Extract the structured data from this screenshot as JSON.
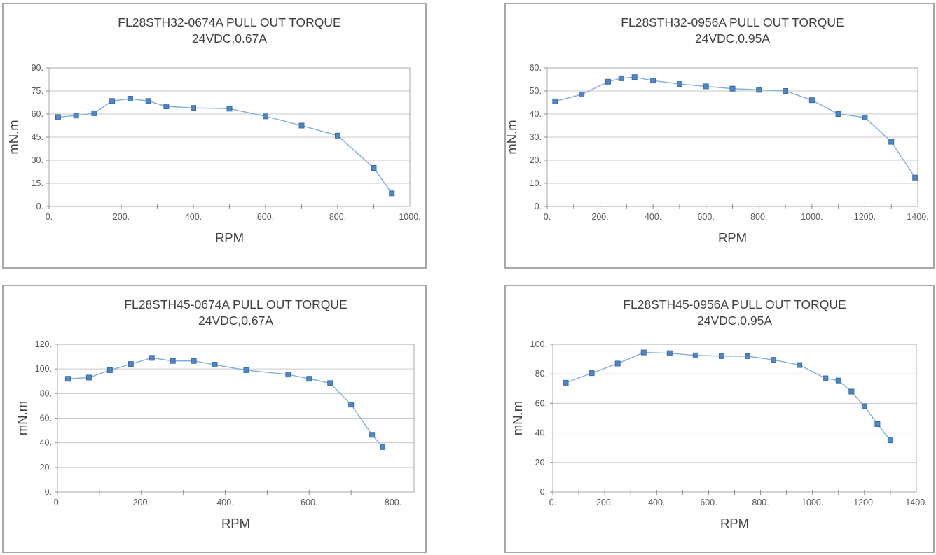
{
  "page": {
    "background": "#ffffff",
    "description": "Four pull-out torque curves for FL28STH stepper motors"
  },
  "chart_data": [
    {
      "type": "line",
      "title": "FL28STH32-0674A PULL OUT TORQUE",
      "subtitle": "24VDC,0.67A",
      "xlabel": "RPM",
      "ylabel": "mN.m",
      "xlim": [
        0,
        1000
      ],
      "ylim": [
        0,
        90
      ],
      "grid": true,
      "legend": "none",
      "xtick_values": [
        0,
        200,
        400,
        600,
        800,
        1000
      ],
      "xtick_labels": [
        "0.",
        "200.",
        "400.",
        "600.",
        "800.",
        "1000."
      ],
      "xminor_step": 100,
      "ytick_values": [
        0,
        15,
        30,
        45,
        60,
        75,
        90
      ],
      "ytick_labels": [
        "0.",
        "15.",
        "30.",
        "45.",
        "60.",
        "75.",
        "90."
      ],
      "series": [
        {
          "name": "pull-out-torque",
          "x": [
            25,
            75,
            125,
            175,
            225,
            275,
            325,
            400,
            500,
            600,
            700,
            800,
            900,
            950
          ],
          "y": [
            58,
            59,
            60.5,
            68.5,
            70,
            68.5,
            65,
            64,
            63.5,
            58.5,
            52.5,
            46,
            25,
            8.5
          ]
        }
      ]
    },
    {
      "type": "line",
      "title": "FL28STH32-0956A PULL OUT TORQUE",
      "subtitle": "24VDC,0.95A",
      "xlabel": "RPM",
      "ylabel": "mN.m",
      "xlim": [
        0,
        1400
      ],
      "ylim": [
        0,
        60
      ],
      "grid": true,
      "legend": "none",
      "xtick_values": [
        0,
        200,
        400,
        600,
        800,
        1000,
        1200,
        1400
      ],
      "xtick_labels": [
        "0.",
        "200.",
        "400.",
        "600.",
        "800.",
        "1000.",
        "1200.",
        "1400."
      ],
      "xminor_step": 100,
      "ytick_values": [
        0,
        10,
        20,
        30,
        40,
        50,
        60
      ],
      "ytick_labels": [
        "0.",
        "10.",
        "20.",
        "30.",
        "40.",
        "50.",
        "60."
      ],
      "series": [
        {
          "name": "pull-out-torque",
          "x": [
            30,
            130,
            230,
            280,
            330,
            400,
            500,
            600,
            700,
            800,
            900,
            1000,
            1100,
            1200,
            1300,
            1390
          ],
          "y": [
            45.5,
            48.5,
            54,
            55.5,
            56,
            54.5,
            53,
            52,
            51,
            50.5,
            50,
            46,
            40,
            38.5,
            28,
            12.5
          ]
        }
      ]
    },
    {
      "type": "line",
      "title": "FL28STH45-0674A PULL OUT TORQUE",
      "subtitle": "24VDC,0.67A",
      "xlabel": "RPM",
      "ylabel": "mN.m",
      "xlim": [
        0,
        850
      ],
      "ylim": [
        0,
        120
      ],
      "grid": true,
      "legend": "none",
      "xtick_values": [
        0,
        200,
        400,
        600,
        800
      ],
      "xtick_labels": [
        "0.",
        "200.",
        "400.",
        "600.",
        "800."
      ],
      "xminor_step": 100,
      "ytick_values": [
        0,
        20,
        40,
        60,
        80,
        100,
        120
      ],
      "ytick_labels": [
        "0.",
        "20.",
        "40.",
        "60.",
        "80.",
        "100.",
        "120."
      ],
      "series": [
        {
          "name": "pull-out-torque",
          "x": [
            25,
            75,
            125,
            175,
            225,
            275,
            325,
            375,
            450,
            550,
            600,
            650,
            700,
            750,
            775
          ],
          "y": [
            92,
            93,
            99,
            104,
            109,
            106.5,
            106.5,
            103.5,
            99,
            95.5,
            92,
            88.5,
            71,
            46.5,
            36.5
          ]
        }
      ]
    },
    {
      "type": "line",
      "title": "FL28STH45-0956A PULL OUT TORQUE",
      "subtitle": "24VDC,0.95A",
      "xlabel": "RPM",
      "ylabel": "mN.m",
      "xlim": [
        0,
        1400
      ],
      "ylim": [
        0,
        100
      ],
      "grid": true,
      "legend": "none",
      "xtick_values": [
        0,
        200,
        400,
        600,
        800,
        1000,
        1200,
        1400
      ],
      "xtick_labels": [
        "0.",
        "200.",
        "400.",
        "600.",
        "800.",
        "1000.",
        "1200.",
        "1400."
      ],
      "xminor_step": 100,
      "ytick_values": [
        0,
        20,
        40,
        60,
        80,
        100
      ],
      "ytick_labels": [
        "0.",
        "20.",
        "40.",
        "60.",
        "80.",
        "100."
      ],
      "series": [
        {
          "name": "pull-out-torque",
          "x": [
            50,
            150,
            250,
            350,
            450,
            550,
            650,
            750,
            850,
            950,
            1050,
            1100,
            1150,
            1200,
            1250,
            1300
          ],
          "y": [
            74,
            80.5,
            87,
            94.5,
            94,
            92.5,
            92,
            92,
            89.5,
            86,
            77,
            75.5,
            68,
            58,
            46,
            35
          ]
        }
      ]
    }
  ],
  "colors": {
    "line": "#85add9",
    "marker_fill": "#4f86c6",
    "marker_border": "#3a6ca8",
    "gridline": "#c9c9c9",
    "plot_border": "#a9a9a9",
    "tick_mark": "#8c8c8c",
    "tick_text": "#595959",
    "title_text": "#404040",
    "panel_border": "#a7a7ad"
  }
}
